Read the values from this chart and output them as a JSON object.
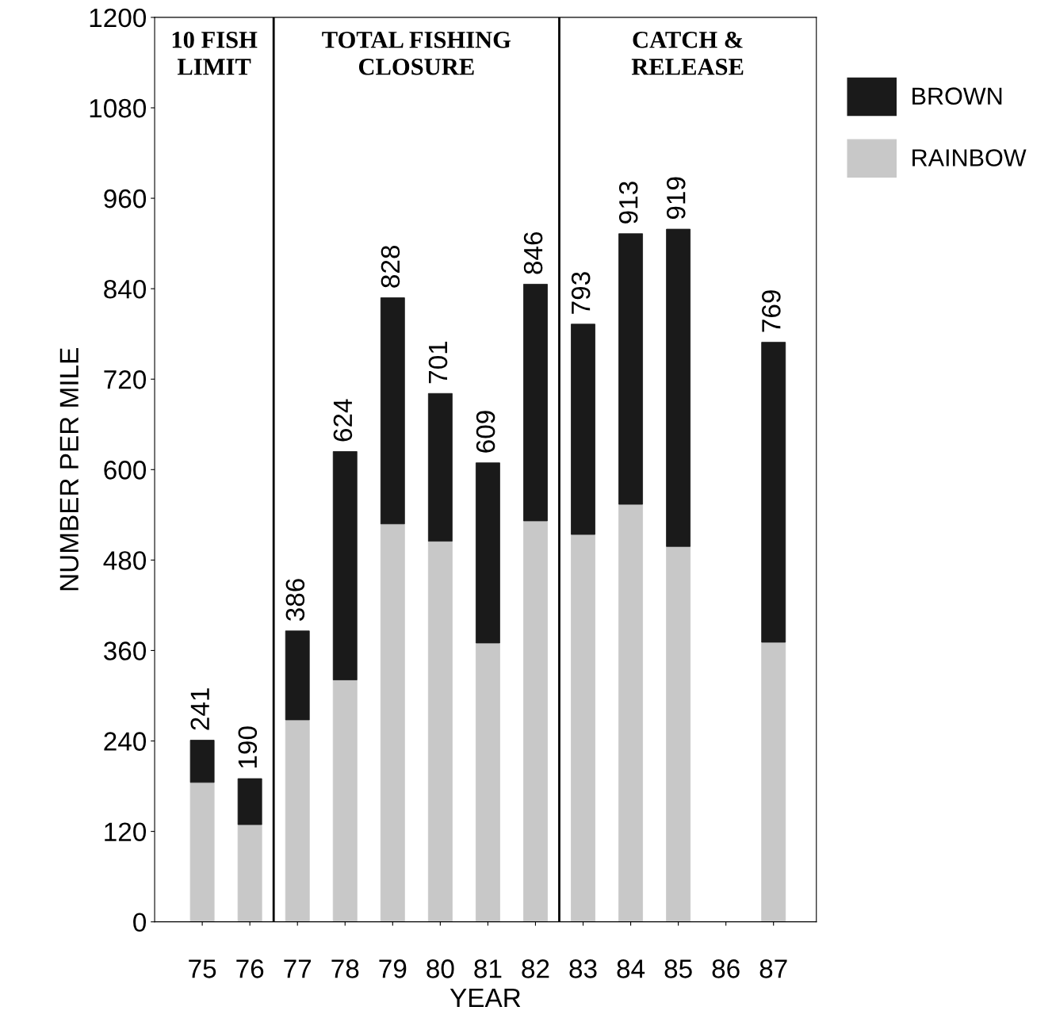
{
  "chart_data": {
    "type": "bar",
    "stacked": true,
    "xlabel": "YEAR",
    "ylabel": "NUMBER PER MILE",
    "x": [
      75,
      76,
      77,
      78,
      79,
      80,
      81,
      82,
      83,
      84,
      85,
      86,
      87
    ],
    "series": [
      {
        "name": "RAINBOW",
        "color": "#c8c8c8",
        "values": [
          185,
          129,
          268,
          321,
          528,
          505,
          370,
          532,
          514,
          554,
          498,
          null,
          371
        ]
      },
      {
        "name": "BROWN",
        "color": "#1a1a1a",
        "values": [
          56,
          61,
          118,
          303,
          300,
          196,
          239,
          314,
          279,
          359,
          421,
          null,
          398
        ]
      }
    ],
    "totals": [
      "241",
      "190",
      "386",
      "624",
      "828",
      "701",
      "609",
      "846",
      "793",
      "913",
      "919",
      null,
      "769"
    ],
    "xlim": [
      74,
      87.9
    ],
    "xticks": [
      75,
      76,
      77,
      78,
      79,
      80,
      81,
      82,
      83,
      84,
      85,
      86,
      87
    ],
    "ylim": [
      0,
      1200
    ],
    "yticks": [
      0,
      120,
      240,
      360,
      480,
      600,
      720,
      840,
      960,
      1080,
      1200
    ],
    "ref_lines": [
      {
        "axis": "x",
        "value": 76.5,
        "color": "#000000"
      },
      {
        "axis": "x",
        "value": 82.5,
        "color": "#000000"
      }
    ],
    "annotations": [
      "10 FISH\nLIMIT",
      "TOTAL FISHING\nCLOSURE",
      "CATCH &\nRELEASE"
    ],
    "grid": false,
    "legend": "right"
  }
}
